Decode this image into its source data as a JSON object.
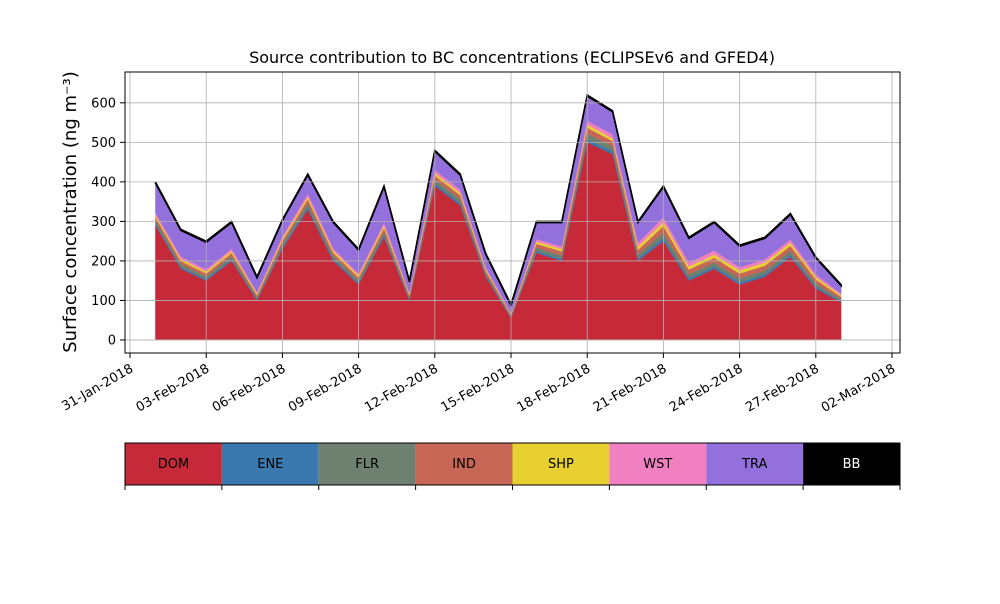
{
  "chart_data": {
    "type": "stacked_area",
    "title": "Source contribution to BC concentrations (ECLIPSEv6 and GFED4)",
    "y_label": "Surface concentration (ng m⁻³)",
    "x": [
      "2018-02-01",
      "2018-02-02",
      "2018-02-03",
      "2018-02-04",
      "2018-02-05",
      "2018-02-06",
      "2018-02-07",
      "2018-02-08",
      "2018-02-09",
      "2018-02-10",
      "2018-02-11",
      "2018-02-12",
      "2018-02-13",
      "2018-02-14",
      "2018-02-15",
      "2018-02-16",
      "2018-02-17",
      "2018-02-18",
      "2018-02-19",
      "2018-02-20",
      "2018-02-21",
      "2018-02-22",
      "2018-02-23",
      "2018-02-24",
      "2018-02-25",
      "2018-02-26",
      "2018-02-27",
      "2018-02-28"
    ],
    "series": [
      {
        "name": "DOM",
        "color": "#c62a38",
        "values": [
          290,
          180,
          150,
          200,
          100,
          230,
          330,
          200,
          140,
          260,
          100,
          390,
          340,
          160,
          55,
          220,
          200,
          500,
          470,
          200,
          250,
          150,
          180,
          140,
          160,
          210,
          130,
          95
        ]
      },
      {
        "name": "ENE",
        "color": "#3a78b0",
        "values": [
          5,
          4,
          4,
          4,
          3,
          5,
          6,
          5,
          4,
          5,
          3,
          6,
          6,
          4,
          2,
          5,
          5,
          8,
          8,
          6,
          8,
          6,
          6,
          6,
          6,
          6,
          5,
          3
        ]
      },
      {
        "name": "FLR",
        "color": "#6e8070",
        "values": [
          8,
          8,
          7,
          8,
          5,
          8,
          10,
          8,
          7,
          9,
          5,
          10,
          10,
          6,
          3,
          9,
          9,
          14,
          12,
          10,
          14,
          10,
          10,
          10,
          10,
          10,
          8,
          5
        ]
      },
      {
        "name": "IND",
        "color": "#c86656",
        "values": [
          8,
          8,
          7,
          8,
          5,
          8,
          10,
          8,
          7,
          9,
          5,
          10,
          10,
          6,
          3,
          9,
          10,
          15,
          13,
          12,
          16,
          12,
          12,
          12,
          12,
          12,
          10,
          6
        ]
      },
      {
        "name": "SHP",
        "color": "#e8d030",
        "values": [
          5,
          5,
          5,
          5,
          4,
          5,
          6,
          5,
          5,
          6,
          3,
          6,
          6,
          4,
          2,
          6,
          6,
          8,
          7,
          8,
          10,
          8,
          8,
          8,
          8,
          8,
          6,
          4
        ]
      },
      {
        "name": "WST",
        "color": "#f080c0",
        "values": [
          6,
          6,
          6,
          6,
          4,
          6,
          8,
          6,
          5,
          8,
          4,
          8,
          8,
          5,
          2,
          6,
          6,
          10,
          10,
          10,
          12,
          10,
          10,
          8,
          8,
          8,
          7,
          4
        ]
      },
      {
        "name": "TRA",
        "color": "#9370db",
        "values": [
          75,
          66,
          68,
          66,
          36,
          40,
          47,
          65,
          59,
          90,
          27,
          47,
          37,
          32,
          20,
          42,
          61,
          62,
          57,
          51,
          77,
          61,
          71,
          53,
          53,
          63,
          41,
          20
        ]
      },
      {
        "name": "BB",
        "color": "#000000",
        "values": [
          3,
          3,
          3,
          3,
          3,
          3,
          3,
          3,
          3,
          3,
          3,
          3,
          3,
          3,
          3,
          3,
          3,
          3,
          3,
          3,
          3,
          3,
          3,
          3,
          3,
          3,
          3,
          3
        ]
      }
    ],
    "xlim": [
      "2018-01-31",
      "2018-03-02"
    ],
    "xticks": [
      {
        "value": "2018-01-31",
        "label": "31-Jan-2018"
      },
      {
        "value": "2018-02-03",
        "label": "03-Feb-2018"
      },
      {
        "value": "2018-02-06",
        "label": "06-Feb-2018"
      },
      {
        "value": "2018-02-09",
        "label": "09-Feb-2018"
      },
      {
        "value": "2018-02-12",
        "label": "12-Feb-2018"
      },
      {
        "value": "2018-02-15",
        "label": "15-Feb-2018"
      },
      {
        "value": "2018-02-18",
        "label": "18-Feb-2018"
      },
      {
        "value": "2018-02-21",
        "label": "21-Feb-2018"
      },
      {
        "value": "2018-02-24",
        "label": "24-Feb-2018"
      },
      {
        "value": "2018-02-27",
        "label": "27-Feb-2018"
      },
      {
        "value": "2018-03-02",
        "label": "02-Mar-2018"
      }
    ],
    "ylim": [
      -33,
      678
    ],
    "yticks": [
      0,
      100,
      200,
      300,
      400,
      500,
      600
    ],
    "grid": true
  }
}
